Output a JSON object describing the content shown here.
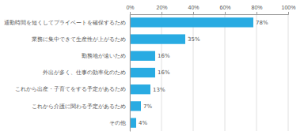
{
  "chart_data": {
    "type": "bar",
    "orientation": "horizontal",
    "categories": [
      "通勤時間を短くしてプライベートを確保するため",
      "業務に集中できて生産性が上がるため",
      "勤務地が遠いため",
      "外出が多く、仕事の効率化のため",
      "これから出産・子育てをする予定があるため",
      "これから介護に関わる予定があるため",
      "その他"
    ],
    "values": [
      78,
      35,
      16,
      16,
      13,
      7,
      4
    ],
    "value_labels": [
      "78%",
      "35%",
      "16%",
      "16%",
      "13%",
      "7%",
      "4%"
    ],
    "color": "#29ABE2",
    "xlim": [
      0,
      100
    ],
    "xticks": [
      {
        "value": 0,
        "label": "0%"
      },
      {
        "value": 20,
        "label": "20%"
      },
      {
        "value": 40,
        "label": "40%"
      },
      {
        "value": 60,
        "label": "60%"
      },
      {
        "value": 80,
        "label": "80%"
      },
      {
        "value": 100,
        "label": "100%"
      }
    ],
    "grid": true,
    "data_labels": true
  }
}
